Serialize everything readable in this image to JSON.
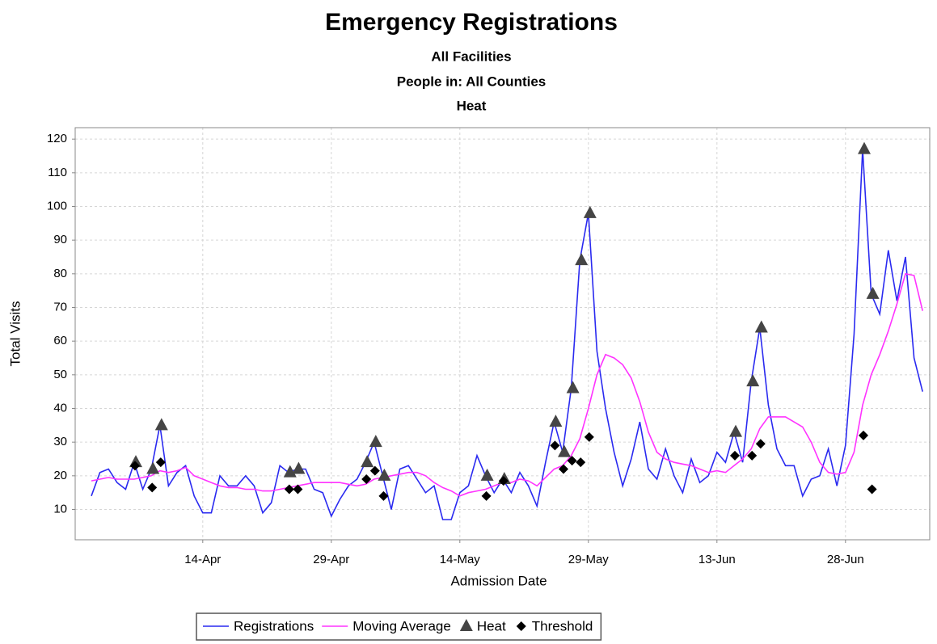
{
  "chart_data": {
    "type": "line",
    "title": "Emergency Registrations",
    "subtitles": [
      "All Facilities",
      "People in: All Counties",
      "Heat"
    ],
    "x_label": "Admission Date",
    "y_label": "Total Visits",
    "categories": [
      null,
      null,
      null,
      null,
      null,
      null,
      null,
      null,
      null,
      null,
      null,
      null,
      null,
      "14-Apr",
      null,
      null,
      null,
      null,
      null,
      null,
      null,
      null,
      null,
      null,
      null,
      null,
      null,
      null,
      "29-Apr",
      null,
      null,
      null,
      null,
      null,
      null,
      null,
      null,
      null,
      null,
      null,
      null,
      null,
      null,
      "14-May",
      null,
      null,
      null,
      null,
      null,
      null,
      null,
      null,
      null,
      null,
      null,
      null,
      null,
      null,
      "29-May",
      null,
      null,
      null,
      null,
      null,
      null,
      null,
      null,
      null,
      null,
      null,
      null,
      null,
      null,
      "13-Jun",
      null,
      null,
      null,
      null,
      null,
      null,
      null,
      null,
      null,
      null,
      null,
      null,
      null,
      null,
      "28-Jun",
      null,
      null,
      null,
      null,
      null,
      null,
      null,
      null,
      null
    ],
    "series": [
      {
        "name": "Registrations",
        "color": "#2a2af0",
        "marker": "line",
        "values": [
          14,
          21,
          22,
          18,
          16,
          24,
          16,
          22,
          35,
          17,
          21,
          23,
          14,
          9,
          9,
          20,
          17,
          17,
          20,
          17,
          9,
          12,
          23,
          21,
          22,
          22,
          16,
          15,
          8,
          13,
          17,
          19,
          24,
          30,
          20,
          10,
          22,
          23,
          19,
          15,
          17,
          7,
          7,
          15,
          17,
          26,
          20,
          15,
          19,
          15,
          21,
          17,
          11,
          24,
          36,
          27,
          46,
          84,
          98,
          57,
          40,
          27,
          17,
          25,
          36,
          22,
          19,
          28,
          20,
          15,
          25,
          18,
          20,
          27,
          24,
          33,
          24,
          48,
          64,
          41,
          28,
          23,
          23,
          14,
          19,
          20,
          28,
          17,
          29,
          62,
          117,
          74,
          68,
          87,
          72,
          85,
          55,
          45
        ]
      },
      {
        "name": "Moving Average",
        "color": "#ff33ff",
        "marker": "line",
        "values": [
          18.5,
          19,
          19.5,
          19,
          19,
          19,
          19.5,
          20,
          21.5,
          21,
          21.5,
          22.5,
          20,
          19,
          18,
          17,
          16.5,
          16.5,
          16,
          16,
          15.5,
          15.5,
          16,
          16.5,
          17,
          17.5,
          18,
          18,
          18,
          18,
          17.5,
          17,
          17.5,
          19,
          19.5,
          20,
          20.5,
          21,
          21,
          20,
          18,
          16.5,
          15.5,
          14,
          15,
          15.5,
          16,
          17,
          18,
          18,
          19,
          18.5,
          17,
          19.5,
          22,
          23,
          26,
          31,
          40,
          50,
          56,
          55,
          53,
          49,
          42,
          33,
          27,
          25,
          24,
          23.5,
          23,
          22,
          21,
          21.5,
          21,
          23,
          25,
          28,
          34,
          37.5,
          37.5,
          37.5,
          36,
          34.5,
          30,
          24,
          21,
          20.5,
          21,
          27,
          41,
          50,
          56,
          63,
          71,
          80,
          79.5,
          69
        ]
      },
      {
        "name": "Heat",
        "color": "#454545",
        "marker": "triangle",
        "values": [
          null,
          null,
          null,
          null,
          null,
          24,
          null,
          22,
          35,
          null,
          null,
          null,
          null,
          null,
          null,
          null,
          null,
          null,
          null,
          null,
          null,
          null,
          null,
          21,
          22,
          null,
          null,
          null,
          null,
          null,
          null,
          null,
          24,
          30,
          20,
          null,
          null,
          null,
          null,
          null,
          null,
          null,
          null,
          null,
          null,
          null,
          20,
          null,
          19,
          null,
          null,
          null,
          null,
          null,
          36,
          27,
          46,
          84,
          98,
          null,
          null,
          null,
          null,
          null,
          null,
          null,
          null,
          null,
          null,
          null,
          null,
          null,
          null,
          null,
          null,
          33,
          null,
          48,
          64,
          null,
          null,
          null,
          null,
          null,
          null,
          null,
          null,
          null,
          null,
          null,
          117,
          74,
          null,
          null,
          null,
          null,
          null,
          null
        ]
      },
      {
        "name": "Threshold",
        "color": "#000000",
        "marker": "diamond",
        "values": [
          null,
          null,
          null,
          null,
          null,
          23,
          null,
          16.5,
          24,
          null,
          null,
          null,
          null,
          null,
          null,
          null,
          null,
          null,
          null,
          null,
          null,
          null,
          null,
          16,
          16,
          null,
          null,
          null,
          null,
          null,
          null,
          null,
          19,
          21.5,
          14,
          null,
          null,
          null,
          null,
          null,
          null,
          null,
          null,
          null,
          null,
          null,
          14,
          null,
          18.5,
          null,
          null,
          null,
          null,
          null,
          29,
          22,
          24.5,
          24,
          31.5,
          null,
          null,
          null,
          null,
          null,
          null,
          null,
          null,
          null,
          null,
          null,
          null,
          null,
          null,
          null,
          null,
          26,
          null,
          26,
          29.5,
          null,
          null,
          null,
          null,
          null,
          null,
          null,
          null,
          null,
          null,
          null,
          32,
          16,
          null,
          null,
          null,
          null,
          null,
          null
        ]
      }
    ],
    "ylim": [
      1,
      123.4
    ],
    "yticks": [
      10,
      20,
      30,
      40,
      50,
      60,
      70,
      80,
      90,
      100,
      110,
      120
    ],
    "grid": true,
    "legend": "bottom"
  }
}
